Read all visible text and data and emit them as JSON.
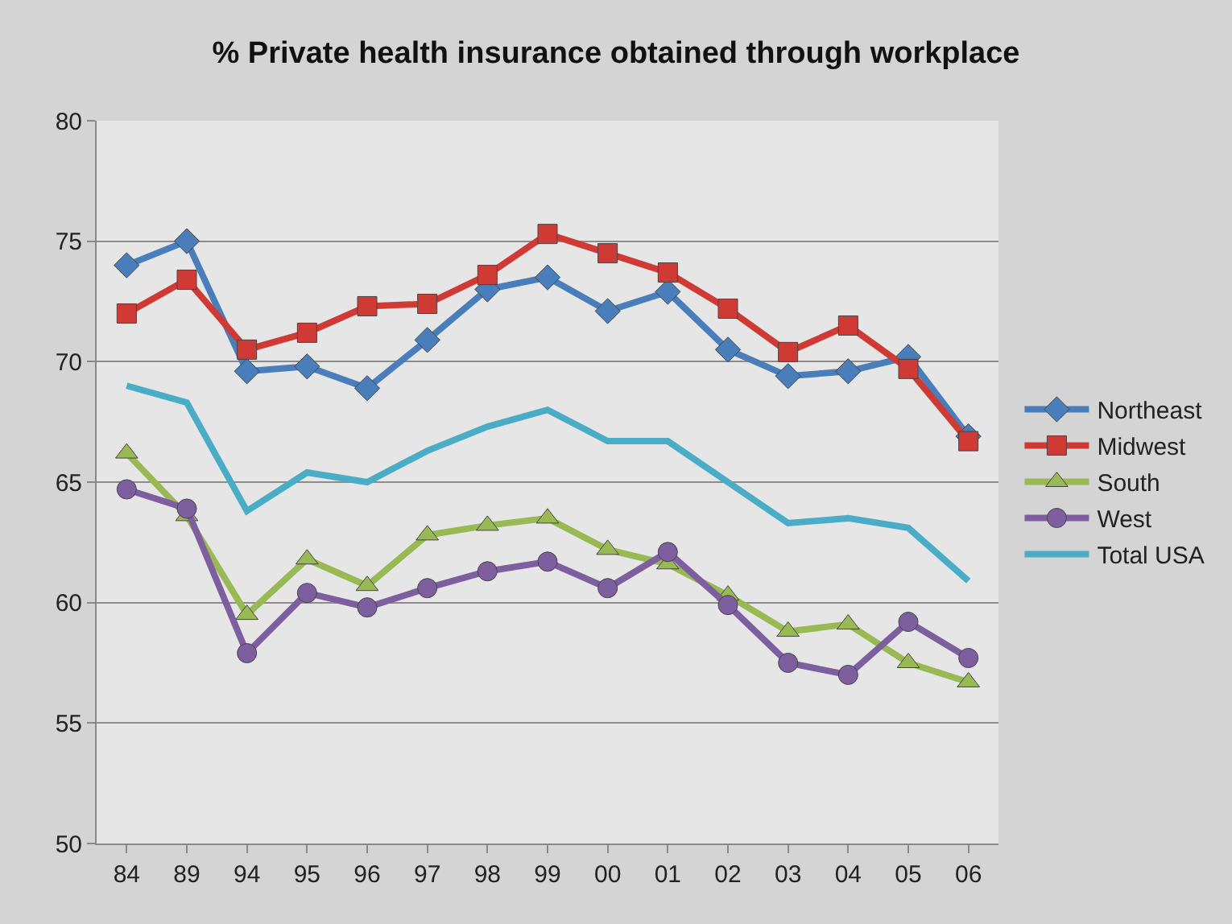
{
  "chart_data": {
    "type": "line",
    "title": "% Private health insurance obtained through workplace",
    "categories": [
      "84",
      "89",
      "94",
      "95",
      "96",
      "97",
      "98",
      "99",
      "00",
      "01",
      "02",
      "03",
      "04",
      "05",
      "06"
    ],
    "series": [
      {
        "name": "Northeast",
        "color": "#4a7ebb",
        "marker": "diamond",
        "values": [
          74.0,
          75.0,
          69.6,
          69.8,
          68.9,
          70.9,
          73.0,
          73.5,
          72.1,
          72.9,
          70.5,
          69.4,
          69.6,
          70.2,
          66.9
        ]
      },
      {
        "name": "Midwest",
        "color": "#d03a35",
        "marker": "square",
        "values": [
          72.0,
          73.4,
          70.5,
          71.2,
          72.3,
          72.4,
          73.6,
          75.3,
          74.5,
          73.7,
          72.2,
          70.4,
          71.5,
          69.7,
          66.7
        ]
      },
      {
        "name": "South",
        "color": "#98b954",
        "marker": "triangle",
        "values": [
          66.2,
          63.6,
          59.5,
          61.8,
          60.7,
          62.8,
          63.2,
          63.5,
          62.2,
          61.6,
          60.3,
          58.8,
          59.1,
          57.5,
          56.7
        ]
      },
      {
        "name": "West",
        "color": "#7d5fa0",
        "marker": "circle",
        "values": [
          64.7,
          63.9,
          57.9,
          60.4,
          59.8,
          60.6,
          61.3,
          61.7,
          60.6,
          62.1,
          59.9,
          57.5,
          57.0,
          59.2,
          57.7
        ]
      },
      {
        "name": "Total USA",
        "color": "#4bacc6",
        "marker": "none",
        "values": [
          69.0,
          68.3,
          63.8,
          65.4,
          65.0,
          66.3,
          67.3,
          68.0,
          66.7,
          66.7,
          65.0,
          63.3,
          63.5,
          63.1,
          60.9
        ]
      }
    ],
    "ylim": [
      50,
      80
    ],
    "yticks": [
      50,
      55,
      60,
      65,
      70,
      75,
      80
    ],
    "grid": "y",
    "legend": "right"
  }
}
